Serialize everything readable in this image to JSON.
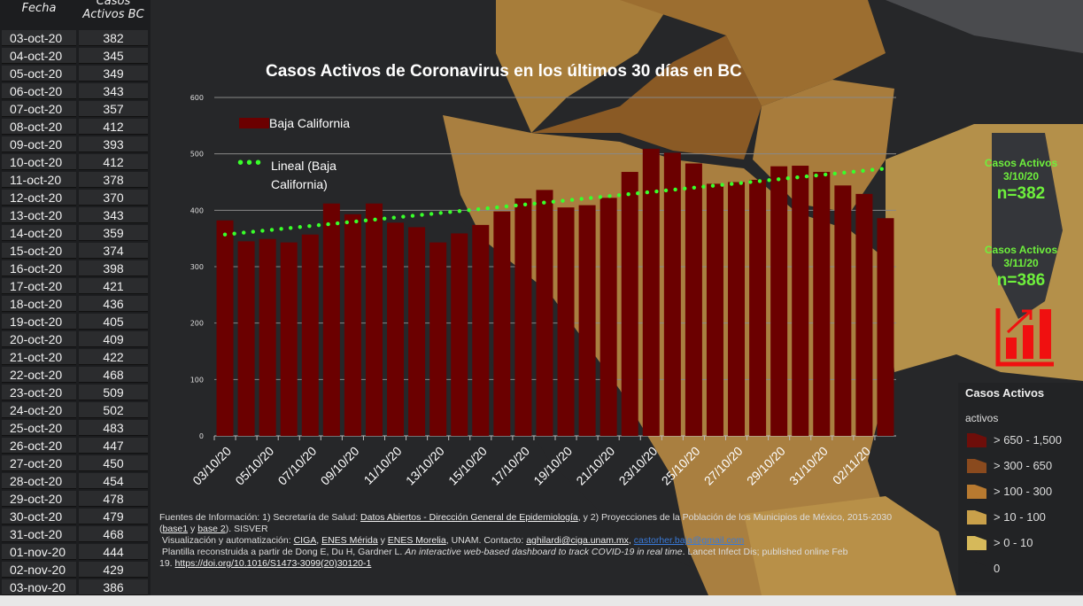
{
  "table": {
    "headers": {
      "date": "Fecha",
      "value": "Casos Activos BC"
    },
    "rows": [
      [
        "03-oct-20",
        "382"
      ],
      [
        "04-oct-20",
        "345"
      ],
      [
        "05-oct-20",
        "349"
      ],
      [
        "06-oct-20",
        "343"
      ],
      [
        "07-oct-20",
        "357"
      ],
      [
        "08-oct-20",
        "412"
      ],
      [
        "09-oct-20",
        "393"
      ],
      [
        "10-oct-20",
        "412"
      ],
      [
        "11-oct-20",
        "378"
      ],
      [
        "12-oct-20",
        "370"
      ],
      [
        "13-oct-20",
        "343"
      ],
      [
        "14-oct-20",
        "359"
      ],
      [
        "15-oct-20",
        "374"
      ],
      [
        "16-oct-20",
        "398"
      ],
      [
        "17-oct-20",
        "421"
      ],
      [
        "18-oct-20",
        "436"
      ],
      [
        "19-oct-20",
        "405"
      ],
      [
        "20-oct-20",
        "409"
      ],
      [
        "21-oct-20",
        "422"
      ],
      [
        "22-oct-20",
        "468"
      ],
      [
        "23-oct-20",
        "509"
      ],
      [
        "24-oct-20",
        "502"
      ],
      [
        "25-oct-20",
        "483"
      ],
      [
        "26-oct-20",
        "447"
      ],
      [
        "27-oct-20",
        "450"
      ],
      [
        "28-oct-20",
        "454"
      ],
      [
        "29-oct-20",
        "478"
      ],
      [
        "30-oct-20",
        "479"
      ],
      [
        "31-oct-20",
        "468"
      ],
      [
        "01-nov-20",
        "444"
      ],
      [
        "02-nov-20",
        "429"
      ],
      [
        "03-nov-20",
        "386"
      ]
    ]
  },
  "chart_data": {
    "type": "bar",
    "title": "Casos Activos  de Coronavirus en los últimos 30 días en BC",
    "categories": [
      "03/10/20",
      "04/10/20",
      "05/10/20",
      "06/10/20",
      "07/10/20",
      "08/10/20",
      "09/10/20",
      "10/10/20",
      "11/10/20",
      "12/10/20",
      "13/10/20",
      "14/10/20",
      "15/10/20",
      "16/10/20",
      "17/10/20",
      "18/10/20",
      "19/10/20",
      "20/10/20",
      "21/10/20",
      "22/10/20",
      "23/10/20",
      "24/10/20",
      "25/10/20",
      "26/10/20",
      "27/10/20",
      "28/10/20",
      "29/10/20",
      "30/10/20",
      "31/10/20",
      "01/11/20",
      "02/11/20",
      "03/11/20"
    ],
    "series": [
      {
        "name": "Baja California",
        "color": "#6b0000",
        "values": [
          382,
          345,
          349,
          343,
          357,
          412,
          393,
          412,
          378,
          370,
          343,
          359,
          374,
          398,
          421,
          436,
          405,
          409,
          422,
          468,
          509,
          502,
          483,
          447,
          450,
          454,
          478,
          479,
          468,
          444,
          429,
          386
        ]
      }
    ],
    "trendline": {
      "name": "Lineal (Baja California)",
      "color": "#39ff2a",
      "start": 357,
      "end": 474
    },
    "ylim": [
      0,
      600
    ],
    "yticks": [
      "0",
      "100",
      "200",
      "300",
      "400",
      "500",
      "600"
    ],
    "legend": {
      "bar": "Baja California",
      "trend1": "Lineal (Baja",
      "trend2": "California)"
    }
  },
  "side": {
    "label1": "Casos Activos",
    "date1": "3/10/20",
    "n1": "n=382",
    "label2": "Casos Activos",
    "date2": "3/11/20",
    "n2": "n=386"
  },
  "legend": {
    "title": "Casos Activos",
    "subtitle": "activos",
    "items": [
      {
        "label": "> 650 - 1,500",
        "color": "#6e0e0a"
      },
      {
        "label": "> 300 - 650",
        "color": "#8a4a1e"
      },
      {
        "label": "> 100 - 300",
        "color": "#b87a30"
      },
      {
        "label": "> 10 - 100",
        "color": "#c9a04a"
      },
      {
        "label": "> 0 - 10",
        "color": "#d6b95a"
      },
      {
        "label": "0",
        "color": "#222325"
      }
    ]
  },
  "footer": {
    "l1a": "Fuentes de Información: 1) Secretaría de Salud: ",
    "l1link": "Datos Abiertos - Dirección General de Epidemiología",
    "l1b": ", y 2) Proyecciones de la Población de los Municipios de México, 2015-2030",
    "base1": "base1",
    "y": " y ",
    "base2": "base 2",
    "sisver": "). SISVER",
    "l3a": "Visualización y automatización: ",
    "ciga": "CIGA",
    "enesm": "ENES Mérida",
    "enesmo": "ENES Morelia",
    "l3b": ", UNAM. Contacto: ",
    "email1": "aghilardi@ciga.unam.mx",
    "email2": "castorher.baja@gmail.com",
    "l4a": "Plantilla reconstruida a partir de Dong E, Du H, Gardner L. ",
    "l4i": "An interactive web-based dashboard to track COVID-19 in real time",
    "l4b": ". Lancet Infect Dis; published online Feb",
    "l5a": "19. ",
    "doi": "https://doi.org/10.1016/S1473-3099(20)30120-1"
  }
}
